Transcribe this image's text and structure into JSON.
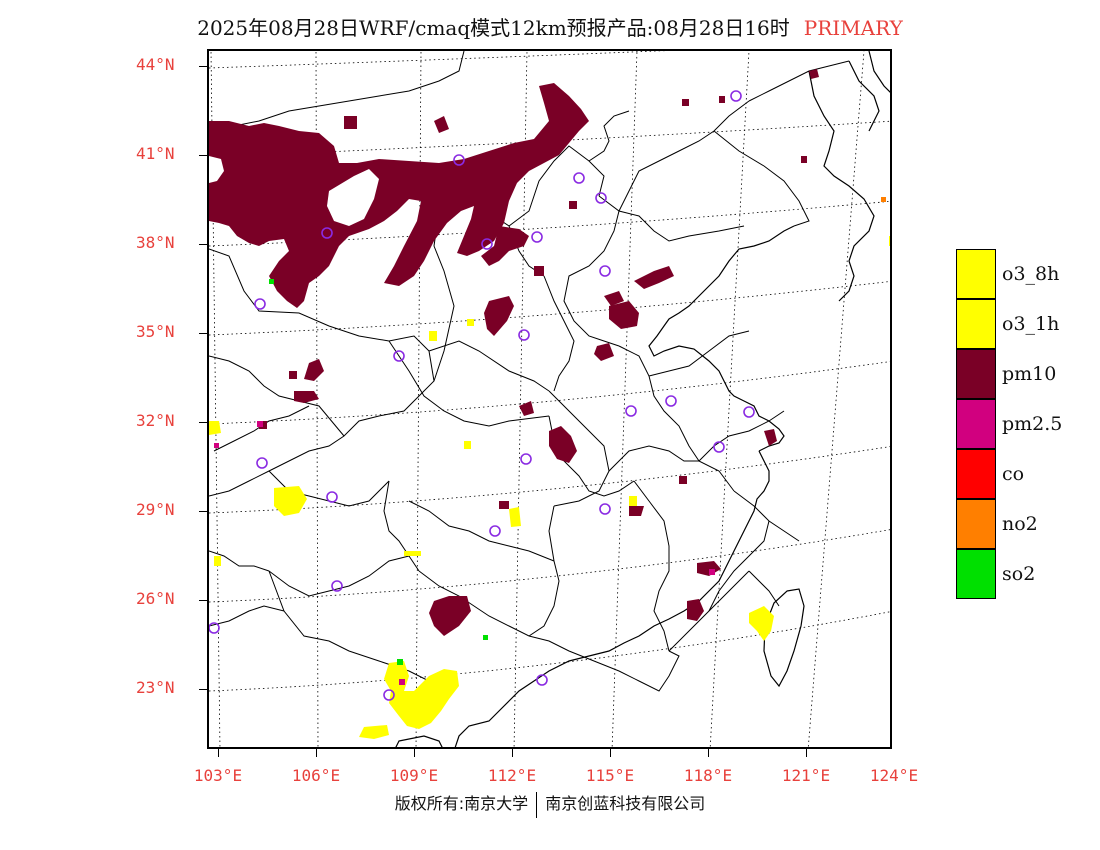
{
  "title": {
    "text": "2025年08月28日WRF/cmaq模式12km预报产品:08月28日16时",
    "pollutant": "PRIMARY"
  },
  "axes": {
    "lat_labels": [
      "44°N",
      "41°N",
      "38°N",
      "35°N",
      "32°N",
      "29°N",
      "26°N",
      "23°N"
    ],
    "lon_labels": [
      "103°E",
      "106°E",
      "109°E",
      "112°E",
      "115°E",
      "118°E",
      "121°E",
      "124°E"
    ]
  },
  "legend": [
    {
      "label": "o3_8h",
      "color": "#ffff00"
    },
    {
      "label": "o3_1h",
      "color": "#ffff00"
    },
    {
      "label": "pm10",
      "color": "#7a0026"
    },
    {
      "label": "pm2.5",
      "color": "#d1007f"
    },
    {
      "label": "co",
      "color": "#ff0000"
    },
    {
      "label": "no2",
      "color": "#ff7f00"
    },
    {
      "label": "so2",
      "color": "#00e000"
    }
  ],
  "colors": {
    "pm10": "#7a0026",
    "o3": "#ffff00",
    "pm25": "#d1007f",
    "so2": "#00e000",
    "no2": "#ff7f00",
    "station": "#8a2be2",
    "axis_label": "#e8413c"
  },
  "footer": {
    "left": "版权所有:南京大学",
    "right": "南京创蓝科技有限公司"
  }
}
